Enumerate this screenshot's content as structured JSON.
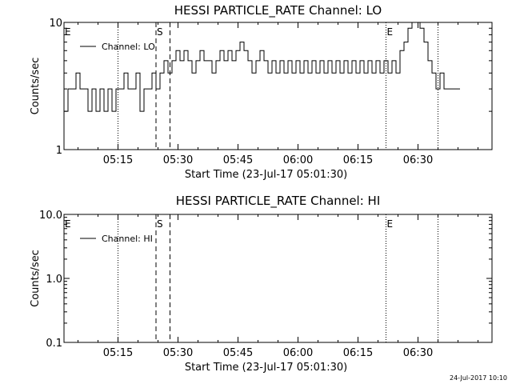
{
  "footer": {
    "timestamp": "24-Jul-2017 10:10"
  },
  "chart_data": [
    {
      "type": "line",
      "title": "HESSI PARTICLE_RATE Channel: LO",
      "xlabel": "Start Time (23-Jul-17 05:01:30)",
      "ylabel": "Counts/sec",
      "y_scale": "log",
      "ylim": [
        1,
        10
      ],
      "xlim_minutes": [
        0,
        107
      ],
      "x_ticks": [
        {
          "t": 13.5,
          "label": "05:15"
        },
        {
          "t": 28.5,
          "label": "05:30"
        },
        {
          "t": 43.5,
          "label": "05:45"
        },
        {
          "t": 58.5,
          "label": "06:00"
        },
        {
          "t": 73.5,
          "label": "06:15"
        },
        {
          "t": 88.5,
          "label": "06:30"
        }
      ],
      "y_ticks": [
        {
          "v": 1,
          "label": "1"
        },
        {
          "v": 10,
          "label": "10"
        }
      ],
      "legend": {
        "label": "Channel: LO",
        "position": "top-left"
      },
      "series": [
        {
          "name": "Channel: LO",
          "x_minutes": [
            0,
            1,
            2,
            3,
            4,
            5,
            6,
            7,
            8,
            9,
            10,
            11,
            12,
            13,
            14,
            15,
            16,
            17,
            18,
            19,
            20,
            21,
            22,
            23,
            24,
            25,
            26,
            27,
            28,
            29,
            30,
            31,
            32,
            33,
            34,
            35,
            36,
            37,
            38,
            39,
            40,
            41,
            42,
            43,
            44,
            45,
            46,
            47,
            48,
            49,
            50,
            51,
            52,
            53,
            54,
            55,
            56,
            57,
            58,
            59,
            60,
            61,
            62,
            63,
            64,
            65,
            66,
            67,
            68,
            69,
            70,
            71,
            72,
            73,
            74,
            75,
            76,
            77,
            78,
            79,
            80,
            81,
            82,
            83,
            84,
            85,
            86,
            87,
            88,
            89,
            90,
            91,
            92,
            93,
            94,
            95,
            96,
            97,
            98
          ],
          "values": [
            2.0,
            3.0,
            3.0,
            4.0,
            3.0,
            3.0,
            2.0,
            3.0,
            2.0,
            3.0,
            2.0,
            3.0,
            2.0,
            3.0,
            3.0,
            4.0,
            3.0,
            3.0,
            4.0,
            2.0,
            3.0,
            3.0,
            4.0,
            3.0,
            4.0,
            5.0,
            4.0,
            5.0,
            6.0,
            5.0,
            6.0,
            5.0,
            4.0,
            5.0,
            6.0,
            5.0,
            5.0,
            4.0,
            5.0,
            6.0,
            5.0,
            6.0,
            5.0,
            6.0,
            7.0,
            6.0,
            5.0,
            4.0,
            5.0,
            6.0,
            5.0,
            4.0,
            5.0,
            4.0,
            5.0,
            4.0,
            5.0,
            4.0,
            5.0,
            4.0,
            5.0,
            4.0,
            5.0,
            4.0,
            5.0,
            4.0,
            5.0,
            4.0,
            5.0,
            4.0,
            5.0,
            4.0,
            5.0,
            4.0,
            5.0,
            4.0,
            5.0,
            4.0,
            5.0,
            4.0,
            5.0,
            4.0,
            5.0,
            4.0,
            6.0,
            7.0,
            9.0,
            10.0,
            10.0,
            9.0,
            7.0,
            5.0,
            4.0,
            3.0,
            4.0,
            3.0,
            3.0,
            3.0,
            3.0
          ]
        }
      ],
      "vertical_markers": [
        {
          "t": 13.5,
          "style": "dotted",
          "label": ""
        },
        {
          "t": 23.0,
          "style": "dashed",
          "label": "S"
        },
        {
          "t": 26.5,
          "style": "dashed",
          "label": ""
        },
        {
          "t": 80.5,
          "style": "dotted",
          "label": "E"
        },
        {
          "t": 93.5,
          "style": "dotted",
          "label": ""
        },
        {
          "t": 0,
          "style": "none",
          "label": "E"
        }
      ]
    },
    {
      "type": "line",
      "title": "HESSI PARTICLE_RATE Channel: HI",
      "xlabel": "Start Time (23-Jul-17 05:01:30)",
      "ylabel": "Counts/sec",
      "y_scale": "log",
      "ylim": [
        0.1,
        10
      ],
      "xlim_minutes": [
        0,
        107
      ],
      "x_ticks": [
        {
          "t": 13.5,
          "label": "05:15"
        },
        {
          "t": 28.5,
          "label": "05:30"
        },
        {
          "t": 43.5,
          "label": "05:45"
        },
        {
          "t": 58.5,
          "label": "06:00"
        },
        {
          "t": 73.5,
          "label": "06:15"
        },
        {
          "t": 88.5,
          "label": "06:30"
        }
      ],
      "y_ticks": [
        {
          "v": 0.1,
          "label": "0.1"
        },
        {
          "v": 1,
          "label": "1.0"
        },
        {
          "v": 10,
          "label": "10.0"
        }
      ],
      "legend": {
        "label": "Channel: HI",
        "position": "top-left"
      },
      "series": [
        {
          "name": "Channel: HI",
          "x_minutes": [],
          "values": []
        }
      ],
      "vertical_markers": [
        {
          "t": 13.5,
          "style": "dotted",
          "label": ""
        },
        {
          "t": 23.0,
          "style": "dashed",
          "label": "S"
        },
        {
          "t": 26.5,
          "style": "dashed",
          "label": ""
        },
        {
          "t": 80.5,
          "style": "dotted",
          "label": "E"
        },
        {
          "t": 93.5,
          "style": "dotted",
          "label": ""
        },
        {
          "t": 0,
          "style": "none",
          "label": "E"
        }
      ]
    }
  ]
}
